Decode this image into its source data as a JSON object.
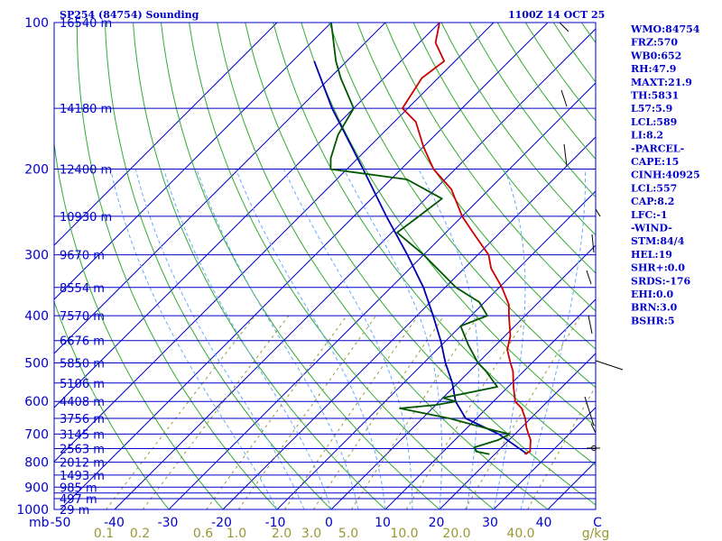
{
  "chart_data": {
    "type": "skew-t sounding",
    "title_left": "SP254 (84754) Sounding",
    "title_right": "1100Z 14 OCT 25",
    "pressure_unit": "mb",
    "mixing_ratio_unit": "g/kg",
    "pressure_levels": [
      100,
      200,
      300,
      400,
      500,
      600,
      700,
      800,
      900,
      1000
    ],
    "isobar_levels": [
      100,
      150,
      200,
      250,
      300,
      350,
      400,
      450,
      500,
      550,
      600,
      650,
      700,
      750,
      800,
      850,
      900,
      925,
      950,
      1000
    ],
    "height_labels": [
      {
        "p": 100,
        "text": "16540 m"
      },
      {
        "p": 150,
        "text": "14180 m"
      },
      {
        "p": 200,
        "text": "12400 m"
      },
      {
        "p": 250,
        "text": "10930 m"
      },
      {
        "p": 300,
        "text": "9670 m"
      },
      {
        "p": 350,
        "text": "8554 m"
      },
      {
        "p": 400,
        "text": "7570 m"
      },
      {
        "p": 450,
        "text": "6676 m"
      },
      {
        "p": 500,
        "text": "5850 m"
      },
      {
        "p": 550,
        "text": "5106 m"
      },
      {
        "p": 600,
        "text": "4408 m"
      },
      {
        "p": 650,
        "text": "3756 m"
      },
      {
        "p": 700,
        "text": "3145 m"
      },
      {
        "p": 750,
        "text": "2563 m"
      },
      {
        "p": 800,
        "text": "2012 m"
      },
      {
        "p": 850,
        "text": "1493 m"
      },
      {
        "p": 900,
        "text": "985 m"
      },
      {
        "p": 950,
        "text": "497 m"
      },
      {
        "p": 1000,
        "text": "29 m"
      }
    ],
    "temperature_ticks": [
      "-50",
      "-40",
      "-30",
      "-20",
      "-10",
      "0",
      "10",
      "20",
      "30",
      "40",
      "C"
    ],
    "mixing_ratio_ticks": [
      "0.1",
      "0.2",
      "0.6",
      "1.0",
      "2.0",
      "3.0",
      "5.0",
      "10.0",
      "20.0",
      "40.0",
      "g/kg"
    ],
    "isotherms_c": [
      -100,
      -90,
      -80,
      -70,
      -60,
      -50,
      -40,
      -30,
      -20,
      -10,
      0,
      10,
      20,
      30,
      40,
      50
    ],
    "dry_adiabats_c": [
      -30,
      -20,
      -10,
      0,
      10,
      20,
      30,
      40,
      50,
      60,
      70,
      80,
      90,
      100,
      110,
      120,
      130,
      140,
      150,
      160,
      170
    ],
    "moist_adiabats_c": [
      -10,
      -5,
      0,
      5,
      10,
      15,
      20,
      25,
      30,
      35
    ],
    "mixing_ratios_gkg": [
      0.1,
      0.2,
      0.6,
      1.0,
      2.0,
      3.0,
      5.0,
      10.0,
      20.0,
      40.0
    ],
    "temperature": [
      {
        "p": 770,
        "t": 25.5
      },
      {
        "p": 760,
        "t": 26
      },
      {
        "p": 740,
        "t": 25
      },
      {
        "p": 720,
        "t": 24
      },
      {
        "p": 700,
        "t": 22.5
      },
      {
        "p": 680,
        "t": 21
      },
      {
        "p": 650,
        "t": 19
      },
      {
        "p": 620,
        "t": 16.5
      },
      {
        "p": 600,
        "t": 14
      },
      {
        "p": 560,
        "t": 11
      },
      {
        "p": 520,
        "t": 8
      },
      {
        "p": 500,
        "t": 6
      },
      {
        "p": 470,
        "t": 3
      },
      {
        "p": 440,
        "t": 1
      },
      {
        "p": 400,
        "t": -3
      },
      {
        "p": 380,
        "t": -5
      },
      {
        "p": 350,
        "t": -9.5
      },
      {
        "p": 320,
        "t": -15
      },
      {
        "p": 300,
        "t": -18
      },
      {
        "p": 270,
        "t": -25
      },
      {
        "p": 250,
        "t": -30
      },
      {
        "p": 220,
        "t": -37
      },
      {
        "p": 200,
        "t": -44
      },
      {
        "p": 180,
        "t": -50
      },
      {
        "p": 160,
        "t": -56
      },
      {
        "p": 150,
        "t": -61
      },
      {
        "p": 130,
        "t": -63
      },
      {
        "p": 120,
        "t": -62
      },
      {
        "p": 110,
        "t": -67
      },
      {
        "p": 100,
        "t": -70
      }
    ],
    "dewpoint": [
      {
        "p": 770,
        "t": 19
      },
      {
        "p": 760,
        "t": 16
      },
      {
        "p": 745,
        "t": 15
      },
      {
        "p": 720,
        "t": 18
      },
      {
        "p": 700,
        "t": 19
      },
      {
        "p": 690,
        "t": 16
      },
      {
        "p": 650,
        "t": 5
      },
      {
        "p": 620,
        "t": -6
      },
      {
        "p": 610,
        "t": 0
      },
      {
        "p": 600,
        "t": 3
      },
      {
        "p": 590,
        "t": 0
      },
      {
        "p": 560,
        "t": 8
      },
      {
        "p": 520,
        "t": 3
      },
      {
        "p": 500,
        "t": 0
      },
      {
        "p": 460,
        "t": -5
      },
      {
        "p": 420,
        "t": -10
      },
      {
        "p": 400,
        "t": -7
      },
      {
        "p": 375,
        "t": -11
      },
      {
        "p": 350,
        "t": -18
      },
      {
        "p": 300,
        "t": -30
      },
      {
        "p": 270,
        "t": -39
      },
      {
        "p": 250,
        "t": -38
      },
      {
        "p": 230,
        "t": -37
      },
      {
        "p": 210,
        "t": -47
      },
      {
        "p": 200,
        "t": -63
      },
      {
        "p": 190,
        "t": -65
      },
      {
        "p": 170,
        "t": -68
      },
      {
        "p": 150,
        "t": -70
      },
      {
        "p": 130,
        "t": -78
      },
      {
        "p": 120,
        "t": -82
      },
      {
        "p": 100,
        "t": -90
      }
    ],
    "parcel": [
      {
        "p": 770,
        "t": 26
      },
      {
        "p": 700,
        "t": 17
      },
      {
        "p": 650,
        "t": 8
      },
      {
        "p": 600,
        "t": 3
      },
      {
        "p": 550,
        "t": -1
      },
      {
        "p": 500,
        "t": -6
      },
      {
        "p": 450,
        "t": -11
      },
      {
        "p": 400,
        "t": -17
      },
      {
        "p": 350,
        "t": -24
      },
      {
        "p": 300,
        "t": -33
      },
      {
        "p": 250,
        "t": -44
      },
      {
        "p": 200,
        "t": -57
      },
      {
        "p": 150,
        "t": -74
      },
      {
        "p": 120,
        "t": -86
      }
    ],
    "wind_staff_pressures": [
      100,
      150,
      200,
      250,
      300,
      350,
      400,
      500,
      600,
      700,
      770
    ]
  },
  "indices": [
    "WMO:84754",
    "FRZ:570",
    "WB0:652",
    "RH:47.9",
    "MAXT:21.9",
    "TH:5831",
    "L57:5.9",
    "LCL:589",
    "LI:8.2",
    "-PARCEL-",
    "CAPE:15",
    "CINH:40925",
    "LCL:557",
    "CAP:8.2",
    "LFC:-1",
    "-WIND-",
    "STM:84/4",
    "HEL:19",
    "SHR+:0.0",
    "SRDS:-176",
    "EHI:0.0",
    "BRN:3.0",
    "BSHR:5"
  ],
  "colors": {
    "isobar": "#0000cc",
    "isotherm": "#0000cc",
    "dry_adiabat": "#33aa33",
    "moist_adiabat": "#66aaff",
    "mixing_ratio": "#999933",
    "temperature": "#cc0000",
    "dewpoint": "#005500",
    "parcel": "#0000aa",
    "wind": "#000000"
  }
}
